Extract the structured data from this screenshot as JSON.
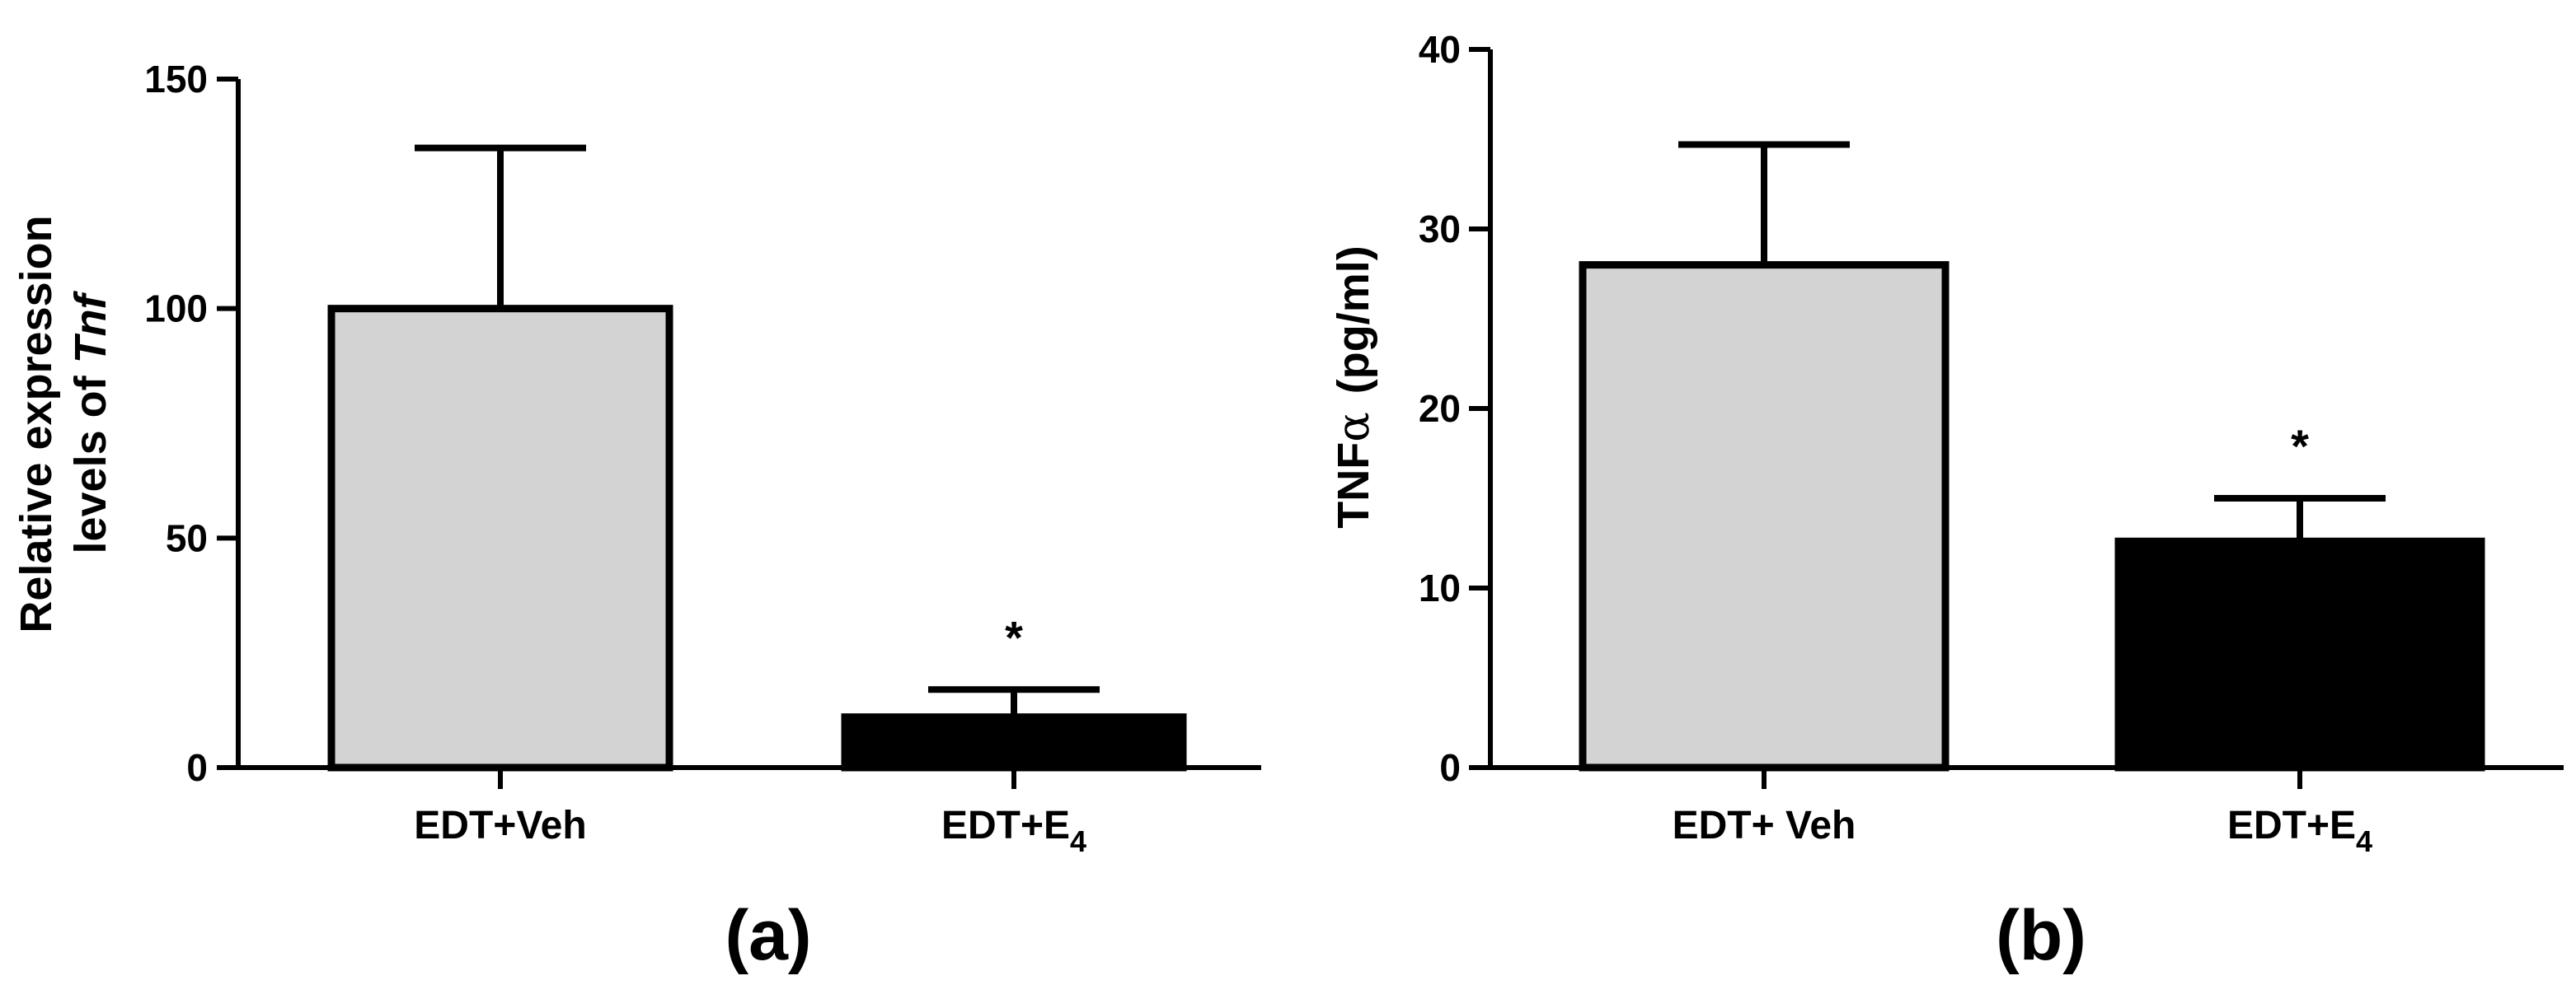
{
  "chart_data": [
    {
      "type": "bar",
      "panel_label": "(a)",
      "ylabel_prefix": "Relative expression",
      "ylabel_line2": "levels of ",
      "ylabel_italic": "Tnf",
      "categories": [
        {
          "main": "EDT+Veh",
          "sub": ""
        },
        {
          "main": "EDT+E",
          "sub": "4"
        }
      ],
      "values": [
        100,
        11
      ],
      "errors": [
        35,
        6
      ],
      "significance": [
        "",
        "*"
      ],
      "ylim": [
        0,
        150
      ],
      "yticks": [
        0,
        50,
        100,
        150
      ],
      "colors": [
        "#d3d3d3",
        "#000000"
      ]
    },
    {
      "type": "bar",
      "panel_label": "(b)",
      "ylabel_prefix": "TNF",
      "ylabel_greek": "α",
      "ylabel_unit": "(pg/ml)",
      "categories": [
        {
          "main": "EDT+ Veh",
          "sub": ""
        },
        {
          "main": "EDT+E",
          "sub": "4"
        }
      ],
      "values": [
        28,
        12.6
      ],
      "errors": [
        6.7,
        2.4
      ],
      "significance": [
        "",
        "*"
      ],
      "ylim": [
        0,
        40
      ],
      "yticks": [
        0,
        10,
        20,
        30,
        40
      ],
      "colors": [
        "#d3d3d3",
        "#000000"
      ]
    }
  ]
}
